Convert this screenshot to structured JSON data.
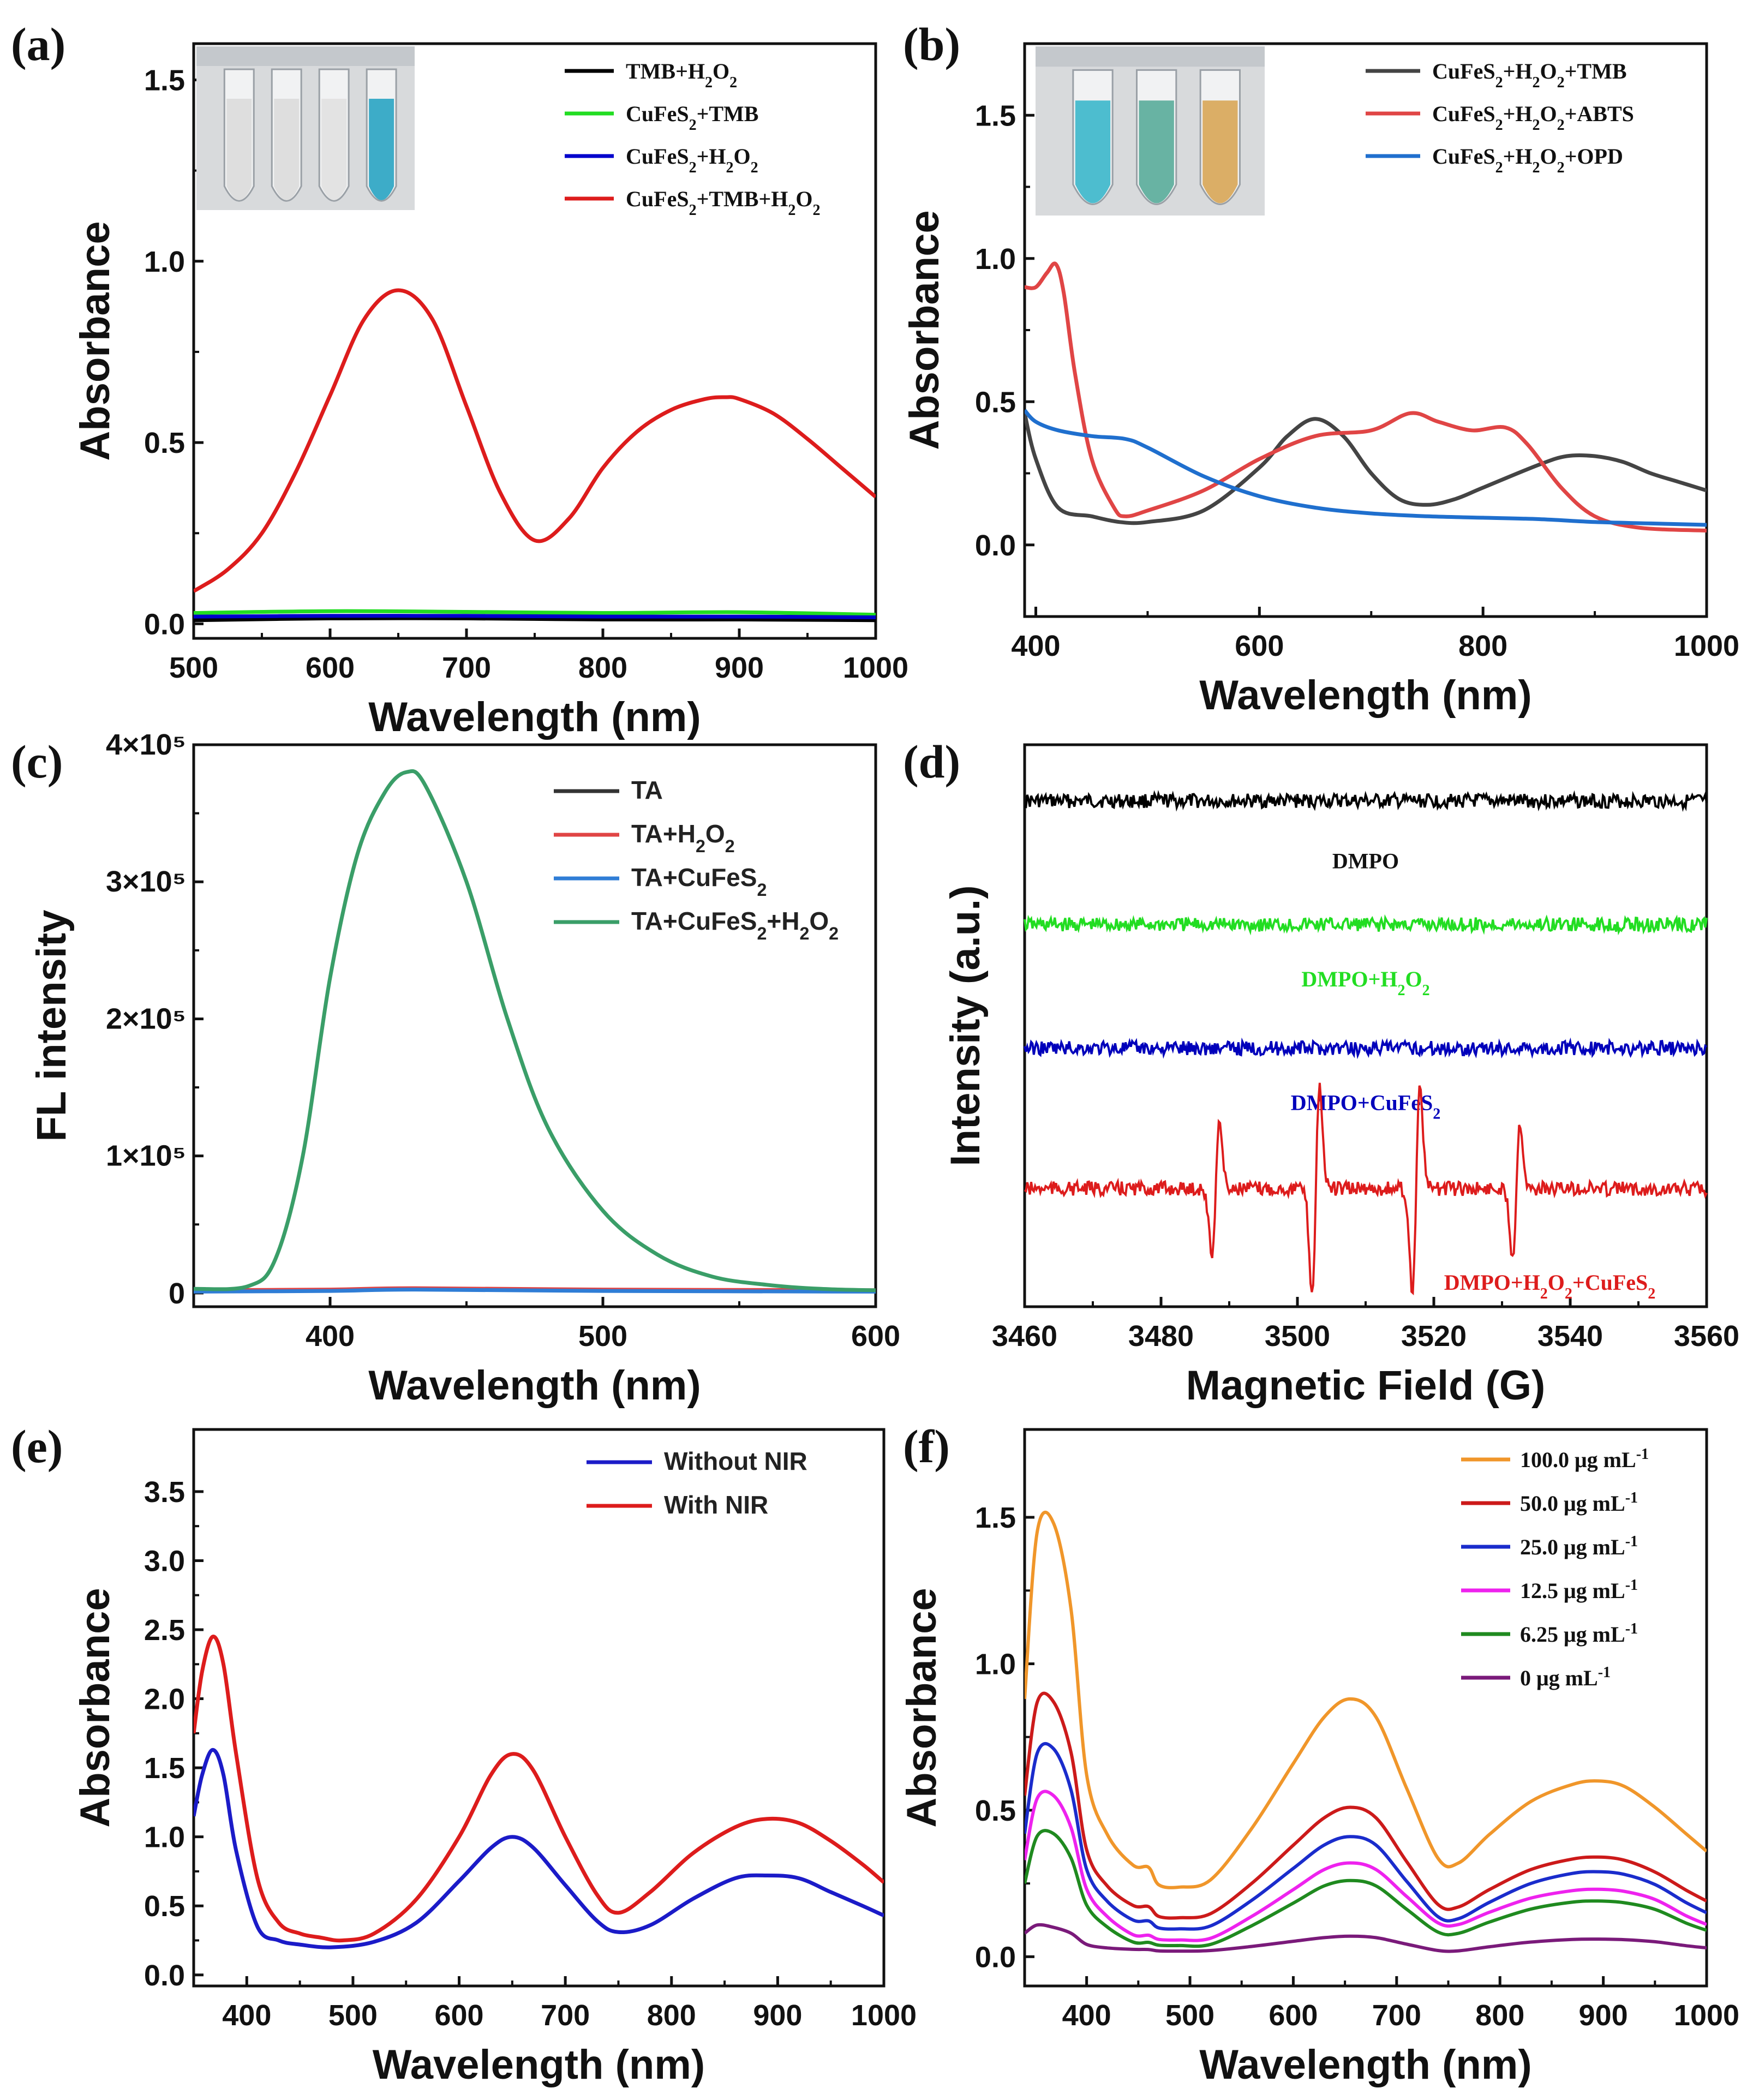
{
  "chart_data": [
    {
      "id": "a",
      "panel_label": "(a)",
      "type": "line",
      "xlabel": "Wavelength (nm)",
      "ylabel": "Absorbance",
      "xlim": [
        500,
        1000
      ],
      "ylim": [
        -0.04,
        1.6
      ],
      "xticks": [
        500,
        600,
        700,
        800,
        900,
        1000
      ],
      "xtick_labels": [
        "500",
        "600",
        "700",
        "800",
        "900",
        "1000"
      ],
      "yticks": [
        0,
        0.5,
        1.0,
        1.5
      ],
      "ytick_labels": [
        "0.0",
        "0.5",
        "1.0",
        "1.5"
      ],
      "legend_style": "serif",
      "inset": {
        "name": "cuvette-photo-a",
        "colors": [
          "#dcdcdc",
          "#dcdcdc",
          "#e2e2e2",
          "#2ea6c4"
        ]
      },
      "series": [
        {
          "name": "TMB+H₂O₂",
          "color": "#000000",
          "x": [
            500,
            600,
            700,
            800,
            900,
            1000
          ],
          "y": [
            0.01,
            0.015,
            0.015,
            0.012,
            0.012,
            0.01
          ]
        },
        {
          "name": "CuFeS₂+TMB",
          "color": "#22dd22",
          "x": [
            500,
            600,
            700,
            800,
            900,
            1000
          ],
          "y": [
            0.03,
            0.035,
            0.033,
            0.03,
            0.032,
            0.025
          ]
        },
        {
          "name": "CuFeS₂+H₂O₂",
          "color": "#0000cc",
          "x": [
            500,
            600,
            700,
            800,
            900,
            1000
          ],
          "y": [
            0.02,
            0.022,
            0.022,
            0.02,
            0.02,
            0.018
          ]
        },
        {
          "name": "CuFeS₂+TMB+H₂O₂",
          "color": "#dd1c1c",
          "x": [
            500,
            525,
            550,
            575,
            600,
            625,
            650,
            675,
            700,
            725,
            750,
            775,
            800,
            825,
            850,
            875,
            890,
            900,
            925,
            950,
            975,
            1000
          ],
          "y": [
            0.09,
            0.15,
            0.25,
            0.42,
            0.63,
            0.84,
            0.92,
            0.84,
            0.6,
            0.36,
            0.23,
            0.29,
            0.43,
            0.53,
            0.59,
            0.62,
            0.625,
            0.62,
            0.58,
            0.51,
            0.43,
            0.35
          ]
        }
      ]
    },
    {
      "id": "b",
      "panel_label": "(b)",
      "type": "line",
      "xlabel": "Wavelength (nm)",
      "ylabel": "Absorbance",
      "xlim": [
        390,
        1000
      ],
      "ylim": [
        -0.25,
        1.75
      ],
      "xticks": [
        400,
        600,
        800,
        1000
      ],
      "xtick_labels": [
        "400",
        "600",
        "800",
        "1000"
      ],
      "yticks": [
        0,
        0.5,
        1.0,
        1.5
      ],
      "ytick_labels": [
        "0.0",
        "0.5",
        "1.0",
        "1.5"
      ],
      "legend_style": "serif",
      "inset": {
        "name": "cuvette-photo-b",
        "colors": [
          "#3fb8cc",
          "#5cae9c",
          "#d9a85a"
        ]
      },
      "series": [
        {
          "name": "CuFeS₂+H₂O₂+TMB",
          "color": "#444444",
          "x": [
            390,
            400,
            420,
            450,
            475,
            500,
            550,
            600,
            625,
            650,
            675,
            700,
            725,
            750,
            775,
            800,
            850,
            875,
            900,
            925,
            950,
            975,
            1000
          ],
          "y": [
            0.46,
            0.3,
            0.13,
            0.1,
            0.08,
            0.08,
            0.12,
            0.27,
            0.38,
            0.44,
            0.38,
            0.25,
            0.16,
            0.14,
            0.16,
            0.2,
            0.28,
            0.31,
            0.31,
            0.29,
            0.25,
            0.22,
            0.19
          ]
        },
        {
          "name": "CuFeS₂+H₂O₂+ABTS",
          "color": "#e04545",
          "x": [
            390,
            400,
            410,
            418,
            425,
            435,
            450,
            470,
            480,
            500,
            550,
            600,
            650,
            700,
            735,
            760,
            790,
            820,
            840,
            870,
            900,
            940,
            1000
          ],
          "y": [
            0.9,
            0.9,
            0.95,
            0.98,
            0.88,
            0.6,
            0.3,
            0.13,
            0.1,
            0.12,
            0.19,
            0.3,
            0.38,
            0.4,
            0.46,
            0.43,
            0.4,
            0.41,
            0.35,
            0.2,
            0.1,
            0.06,
            0.05
          ]
        },
        {
          "name": "CuFeS₂+H₂O₂+OPD",
          "color": "#1f6fce",
          "x": [
            390,
            400,
            420,
            450,
            480,
            500,
            550,
            600,
            650,
            700,
            750,
            800,
            850,
            900,
            950,
            1000
          ],
          "y": [
            0.47,
            0.43,
            0.4,
            0.38,
            0.37,
            0.34,
            0.24,
            0.17,
            0.13,
            0.11,
            0.1,
            0.095,
            0.09,
            0.08,
            0.075,
            0.07
          ]
        }
      ]
    },
    {
      "id": "c",
      "panel_label": "(c)",
      "type": "line",
      "xlabel": "Wavelength (nm)",
      "ylabel": "FL intensity",
      "xlim": [
        350,
        600
      ],
      "ylim": [
        -10000,
        400000
      ],
      "xticks": [
        400,
        500,
        600
      ],
      "xtick_labels": [
        "400",
        "500",
        "600"
      ],
      "yticks": [
        0,
        100000,
        200000,
        300000,
        400000
      ],
      "ytick_labels": [
        "0",
        "1×10⁵",
        "2×10⁵",
        "3×10⁵",
        "4×10⁵"
      ],
      "legend_style": "sans",
      "series": [
        {
          "name": "TA",
          "color": "#333333",
          "x": [
            350,
            400,
            430,
            500,
            600
          ],
          "y": [
            2000,
            2000,
            3000,
            2000,
            2000
          ]
        },
        {
          "name": "TA+H₂O₂",
          "color": "#e04545",
          "x": [
            350,
            400,
            430,
            500,
            600
          ],
          "y": [
            2000,
            2500,
            3500,
            2500,
            2000
          ]
        },
        {
          "name": "TA+CuFeS₂",
          "color": "#2f7dd6",
          "x": [
            350,
            400,
            430,
            500,
            600
          ],
          "y": [
            1000,
            1500,
            2500,
            1500,
            1000
          ]
        },
        {
          "name": "TA+CuFeS₂+H₂O₂",
          "color": "#3a9e68",
          "x": [
            350,
            370,
            380,
            390,
            400,
            410,
            420,
            428,
            435,
            450,
            465,
            480,
            500,
            520,
            540,
            560,
            580,
            600
          ],
          "y": [
            3000,
            5000,
            25000,
            100000,
            230000,
            320000,
            365000,
            380000,
            370000,
            300000,
            200000,
            120000,
            60000,
            28000,
            12000,
            6000,
            3000,
            2000
          ]
        }
      ]
    },
    {
      "id": "d",
      "panel_label": "(d)",
      "type": "line",
      "xlabel": "Magnetic Field (G)",
      "ylabel": "Intensity (a.u.)",
      "xlim": [
        3460,
        3560
      ],
      "xticks": [
        3460,
        3480,
        3500,
        3520,
        3540,
        3560
      ],
      "xtick_labels": [
        "3460",
        "3480",
        "3500",
        "3520",
        "3540",
        "3560"
      ],
      "series": [
        {
          "name": "DMPO",
          "color": "#000000",
          "baseline": 0.9,
          "peaks": []
        },
        {
          "name": "DMPO+H₂O₂",
          "color": "#22dd22",
          "baseline": 0.68,
          "peaks": []
        },
        {
          "name": "DMPO+CuFeS₂",
          "color": "#0000bb",
          "baseline": 0.46,
          "peaks": []
        },
        {
          "name": "DMPO+H₂O₂+CuFeS₂",
          "color": "#dd1c1c",
          "baseline": 0.21,
          "peaks": [
            {
              "center": 3488,
              "amplitude": 0.65
            },
            {
              "center": 3502.7,
              "amplitude": 1.0
            },
            {
              "center": 3517.4,
              "amplitude": 1.0
            },
            {
              "center": 3532.1,
              "amplitude": 0.65
            }
          ]
        }
      ]
    },
    {
      "id": "e",
      "panel_label": "(e)",
      "type": "line",
      "xlabel": "Wavelength (nm)",
      "ylabel": "Absorbance",
      "xlim": [
        350,
        1000
      ],
      "ylim": [
        -0.08,
        3.95
      ],
      "xticks": [
        400,
        500,
        600,
        700,
        800,
        900,
        1000
      ],
      "xtick_labels": [
        "400",
        "500",
        "600",
        "700",
        "800",
        "900",
        "1000"
      ],
      "yticks": [
        0,
        0.5,
        1.0,
        1.5,
        2.0,
        2.5,
        3.0,
        3.5
      ],
      "ytick_labels": [
        "0.0",
        "0.5",
        "1.0",
        "1.5",
        "2.0",
        "2.5",
        "3.0",
        "3.5"
      ],
      "legend_style": "sans",
      "series": [
        {
          "name": "Without NIR",
          "color": "#1b1bc8",
          "x": [
            350,
            358,
            368,
            378,
            390,
            410,
            430,
            450,
            480,
            520,
            560,
            600,
            630,
            650,
            670,
            700,
            730,
            750,
            780,
            820,
            860,
            890,
            920,
            950,
            980,
            1000
          ],
          "y": [
            1.15,
            1.45,
            1.63,
            1.45,
            0.9,
            0.35,
            0.25,
            0.22,
            0.2,
            0.24,
            0.38,
            0.68,
            0.92,
            1.0,
            0.92,
            0.65,
            0.39,
            0.31,
            0.36,
            0.55,
            0.7,
            0.72,
            0.7,
            0.6,
            0.5,
            0.43
          ]
        },
        {
          "name": "With NIR",
          "color": "#dd1c1c",
          "x": [
            350,
            358,
            368,
            378,
            390,
            410,
            430,
            450,
            470,
            490,
            520,
            560,
            600,
            630,
            650,
            670,
            700,
            730,
            750,
            780,
            820,
            860,
            890,
            920,
            950,
            980,
            1000
          ],
          "y": [
            1.75,
            2.2,
            2.45,
            2.25,
            1.6,
            0.7,
            0.38,
            0.3,
            0.27,
            0.25,
            0.3,
            0.55,
            1.0,
            1.45,
            1.6,
            1.48,
            1.0,
            0.58,
            0.45,
            0.6,
            0.88,
            1.07,
            1.13,
            1.1,
            0.97,
            0.8,
            0.67
          ]
        }
      ]
    },
    {
      "id": "f",
      "panel_label": "(f)",
      "type": "line",
      "xlabel": "Wavelength (nm)",
      "ylabel": "Absorbance",
      "xlim": [
        340,
        1000
      ],
      "ylim": [
        -0.1,
        1.8
      ],
      "xticks": [
        400,
        500,
        600,
        700,
        800,
        900,
        1000
      ],
      "xtick_labels": [
        "400",
        "500",
        "600",
        "700",
        "800",
        "900",
        "1000"
      ],
      "yticks": [
        0,
        0.5,
        1.0,
        1.5
      ],
      "ytick_labels": [
        "0.0",
        "0.5",
        "1.0",
        "1.5"
      ],
      "legend_style": "serif",
      "series": [
        {
          "name": "100.0 μg mL",
          "color": "#f0962a",
          "peak_uv": 1.48,
          "base": 0.25,
          "peak_vis": 0.88,
          "valley": 0.32,
          "peak_nir": 0.6,
          "end": 0.36,
          "start": 0.88
        },
        {
          "name": "50.0 μg mL",
          "color": "#cc1a1a",
          "peak_uv": 0.87,
          "base": 0.14,
          "peak_vis": 0.51,
          "valley": 0.17,
          "peak_nir": 0.34,
          "end": 0.19,
          "start": 0.55
        },
        {
          "name": "25.0 μg mL",
          "color": "#1a2ccc",
          "peak_uv": 0.71,
          "base": 0.1,
          "peak_vis": 0.41,
          "valley": 0.13,
          "peak_nir": 0.29,
          "end": 0.15,
          "start": 0.42
        },
        {
          "name": "12.5 μg mL",
          "color": "#ee22ee",
          "peak_uv": 0.55,
          "base": 0.06,
          "peak_vis": 0.32,
          "valley": 0.11,
          "peak_nir": 0.23,
          "end": 0.11,
          "start": 0.33
        },
        {
          "name": "6.25 μg mL",
          "color": "#1f8a1f",
          "peak_uv": 0.42,
          "base": 0.04,
          "peak_vis": 0.26,
          "valley": 0.08,
          "peak_nir": 0.19,
          "end": 0.09,
          "start": 0.25
        },
        {
          "name": "0 μg mL",
          "color": "#7a1a7a",
          "peak_uv": 0.1,
          "base": 0.02,
          "peak_vis": 0.07,
          "valley": 0.02,
          "peak_nir": 0.06,
          "end": 0.03,
          "start": 0.08
        }
      ],
      "legend_superscript": "-1"
    }
  ]
}
